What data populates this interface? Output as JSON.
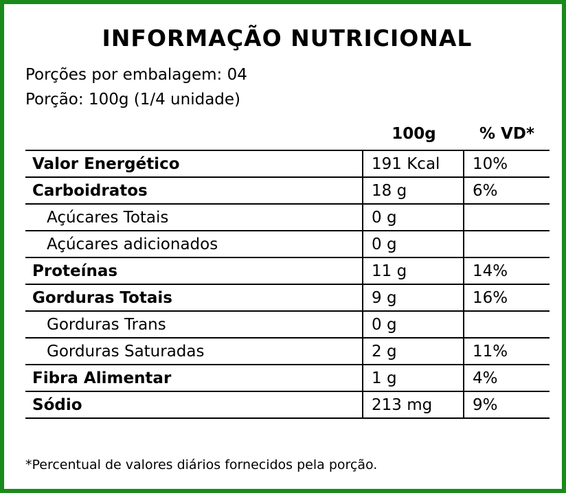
{
  "title": "INFORMAÇÃO NUTRICIONAL",
  "servings_per_package": "Porções por embalagem: 04",
  "serving_size": "Porção: 100g (1/4 unidade)",
  "columns": {
    "amount": "100g",
    "daily_value": "% VD*"
  },
  "rows": [
    {
      "name": "Valor Energético",
      "amount": "191 Kcal",
      "dv": "10%",
      "bold": true
    },
    {
      "name": "Carboidratos",
      "amount": "18 g",
      "dv": "6%",
      "bold": true
    },
    {
      "name": "Açúcares Totais",
      "amount": "0 g",
      "dv": "",
      "bold": false
    },
    {
      "name": "Açúcares adicionados",
      "amount": "0 g",
      "dv": "",
      "bold": false
    },
    {
      "name": "Proteínas",
      "amount": "11 g",
      "dv": "14%",
      "bold": true
    },
    {
      "name": "Gorduras Totais",
      "amount": "9 g",
      "dv": "16%",
      "bold": true
    },
    {
      "name": "Gorduras Trans",
      "amount": "0 g",
      "dv": "",
      "bold": false
    },
    {
      "name": "Gorduras Saturadas",
      "amount": "2 g",
      "dv": "11%",
      "bold": false
    },
    {
      "name": "Fibra Alimentar",
      "amount": "1 g",
      "dv": "4%",
      "bold": true
    },
    {
      "name": "Sódio",
      "amount": "213 mg",
      "dv": "9%",
      "bold": true
    }
  ],
  "footnote": "*Percentual de valores diários fornecidos pela porção.",
  "colors": {
    "border": "#1a8a1a",
    "text": "#000000",
    "background": "#ffffff"
  }
}
